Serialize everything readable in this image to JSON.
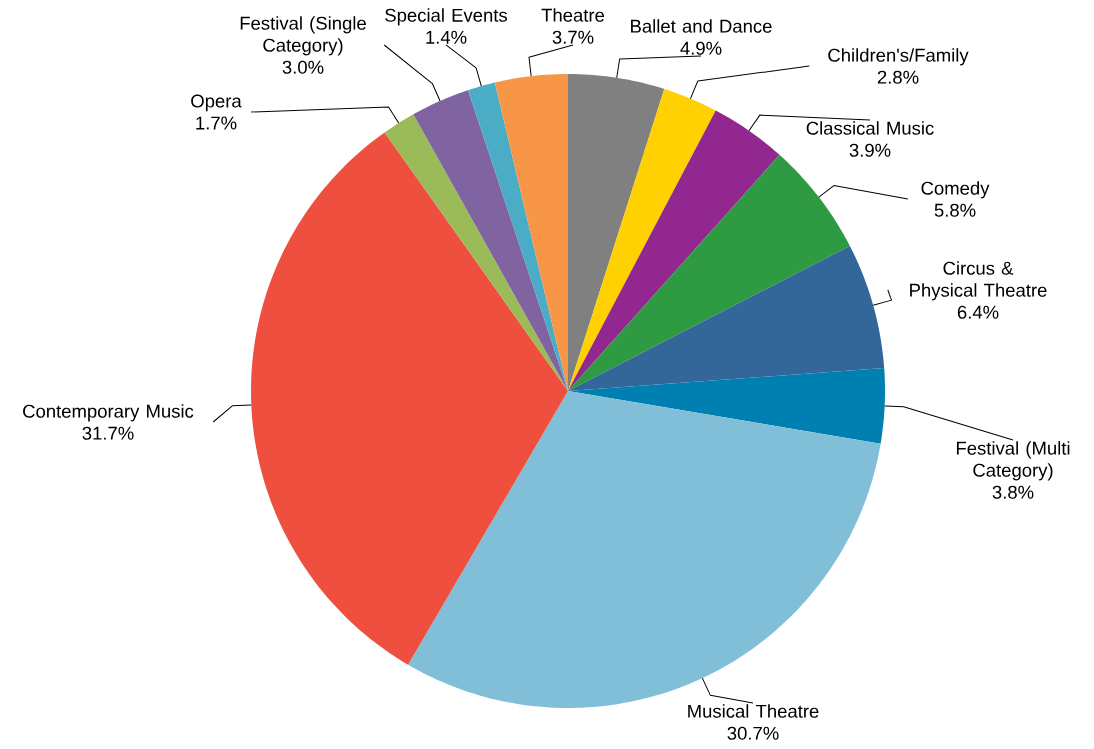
{
  "chart_data": {
    "type": "pie",
    "categories": [
      "Ballet and Dance",
      "Children's/Family",
      "Classical Music",
      "Comedy",
      "Circus & Physical Theatre",
      "Festival (Multi Category)",
      "Musical Theatre",
      "Contemporary Music",
      "Opera",
      "Festival (Single Category)",
      "Special Events",
      "Theatre"
    ],
    "values": [
      4.9,
      2.8,
      3.9,
      5.8,
      6.4,
      3.8,
      30.7,
      31.7,
      1.7,
      3.0,
      1.4,
      3.7
    ],
    "colors": [
      "#808080",
      "#ffd100",
      "#92278f",
      "#2e9a42",
      "#336699",
      "#0080b0",
      "#80bfd7",
      "#ef4f3f",
      "#9bbb59",
      "#8064a2",
      "#4bacc6",
      "#f79646"
    ],
    "value_labels": [
      "4.9%",
      "2.8%",
      "3.9%",
      "5.8%",
      "6.4%",
      "3.8%",
      "30.7%",
      "31.7%",
      "1.7%",
      "3.0%",
      "1.4%",
      "3.7%"
    ]
  }
}
